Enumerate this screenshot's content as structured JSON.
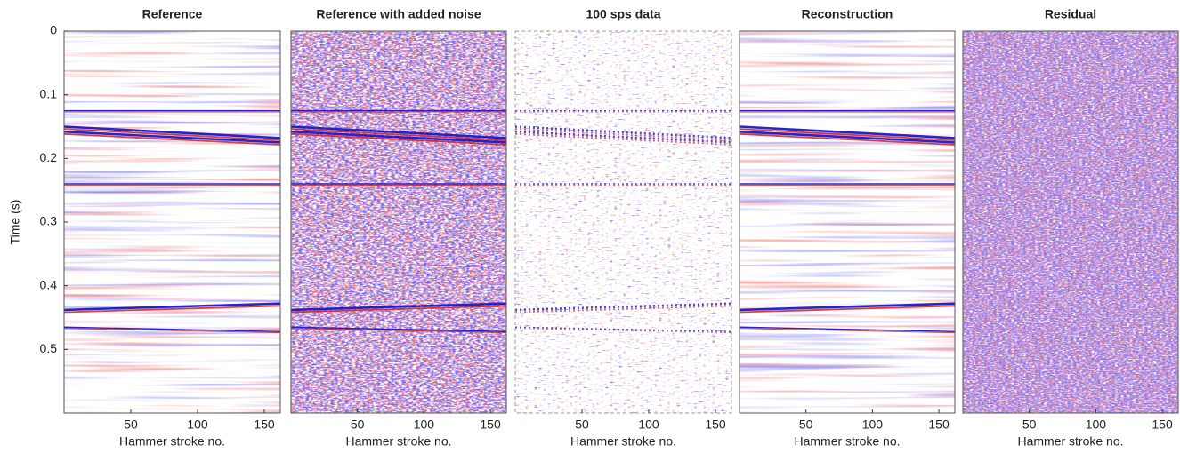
{
  "chart_data": [
    {
      "type": "image",
      "title": "Reference",
      "ylabel": "Time (s)",
      "xlabel": "Hammer stroke no.",
      "xlim": [
        0,
        162
      ],
      "xticks": [
        50,
        100,
        150
      ],
      "ylim": [
        0,
        0.6
      ],
      "y_reversed": true,
      "yticks": [
        0,
        0.1,
        0.2,
        0.3,
        0.4,
        0.5
      ],
      "layers": [
        {
          "t0": 0.125,
          "t1": 0.125
        },
        {
          "t0": 0.15,
          "t1": 0.168
        },
        {
          "t0": 0.158,
          "t1": 0.175
        },
        {
          "t0": 0.24,
          "t1": 0.24
        },
        {
          "t0": 0.438,
          "t1": 0.428
        },
        {
          "t0": 0.465,
          "t1": 0.472
        }
      ]
    },
    {
      "type": "image",
      "title": "Reference with added noise",
      "xlabel": "Hammer stroke no.",
      "xlim": [
        0,
        162
      ],
      "xticks": [
        50,
        100,
        150
      ],
      "ylim": [
        0,
        0.6
      ],
      "y_reversed": true,
      "layers": [
        {
          "t0": 0.125,
          "t1": 0.125
        },
        {
          "t0": 0.15,
          "t1": 0.168
        },
        {
          "t0": 0.158,
          "t1": 0.175
        },
        {
          "t0": 0.24,
          "t1": 0.24
        },
        {
          "t0": 0.438,
          "t1": 0.428
        },
        {
          "t0": 0.465,
          "t1": 0.472
        }
      ]
    },
    {
      "type": "image",
      "title": "100 sps data",
      "xlabel": "Hammer stroke no.",
      "xlim": [
        0,
        162
      ],
      "xticks": [
        50,
        100,
        150
      ],
      "ylim": [
        0,
        0.6
      ],
      "y_reversed": true,
      "layers": [
        {
          "t0": 0.125,
          "t1": 0.125
        },
        {
          "t0": 0.15,
          "t1": 0.168
        },
        {
          "t0": 0.158,
          "t1": 0.175
        },
        {
          "t0": 0.24,
          "t1": 0.24
        },
        {
          "t0": 0.438,
          "t1": 0.428
        },
        {
          "t0": 0.465,
          "t1": 0.472
        }
      ]
    },
    {
      "type": "image",
      "title": "Reconstruction",
      "xlabel": "Hammer stroke no.",
      "xlim": [
        0,
        162
      ],
      "xticks": [
        50,
        100,
        150
      ],
      "ylim": [
        0,
        0.6
      ],
      "y_reversed": true,
      "layers": [
        {
          "t0": 0.125,
          "t1": 0.125
        },
        {
          "t0": 0.15,
          "t1": 0.168
        },
        {
          "t0": 0.158,
          "t1": 0.175
        },
        {
          "t0": 0.24,
          "t1": 0.24
        },
        {
          "t0": 0.438,
          "t1": 0.428
        },
        {
          "t0": 0.465,
          "t1": 0.472
        }
      ]
    },
    {
      "type": "image",
      "title": "Residual",
      "xlabel": "Hammer stroke no.",
      "xlim": [
        0,
        162
      ],
      "xticks": [
        50,
        100,
        150
      ],
      "ylim": [
        0,
        0.6
      ],
      "y_reversed": true,
      "layers": []
    }
  ]
}
